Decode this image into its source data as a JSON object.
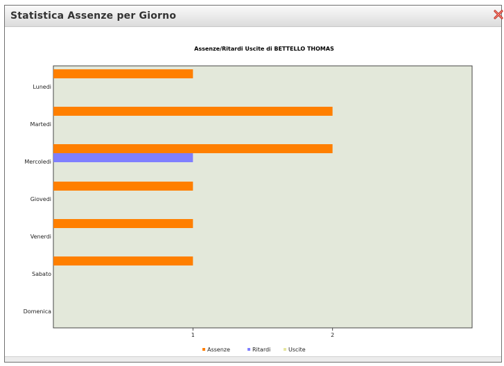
{
  "window": {
    "title": "Statistica Assenze per Giorno",
    "close_icon": "close-x-icon"
  },
  "chart_data": {
    "type": "bar",
    "orientation": "horizontal",
    "title": "Assenze/Ritardi Uscite di BETTELLO THOMAS",
    "xlabel": "",
    "ylabel": "",
    "categories": [
      "Lunedì",
      "Martedì",
      "Mercoledì",
      "Giovedì",
      "Venerdì",
      "Sabato",
      "Domenica"
    ],
    "category_labels": [
      "Lunedi",
      "Martedi",
      "Mercoledi",
      "Giovedi",
      "Venerdi",
      "Sabato",
      "Domenica"
    ],
    "series": [
      {
        "name": "Assenze",
        "color": "#ff7f00",
        "values": [
          1,
          2,
          2,
          1,
          1,
          1,
          0
        ]
      },
      {
        "name": "Ritardi",
        "color": "#7f7fff",
        "values": [
          0,
          0,
          1,
          0,
          0,
          0,
          0
        ]
      },
      {
        "name": "Uscite",
        "color": "#e6e6a0",
        "values": [
          0,
          0,
          0,
          0,
          0,
          0,
          0
        ]
      }
    ],
    "xlim": [
      0,
      3
    ],
    "x_ticks": [
      "1",
      "2"
    ],
    "x_tick_values": [
      1,
      2
    ],
    "grid": false,
    "legend_position": "bottom",
    "plot_background": "#e3e8da"
  }
}
